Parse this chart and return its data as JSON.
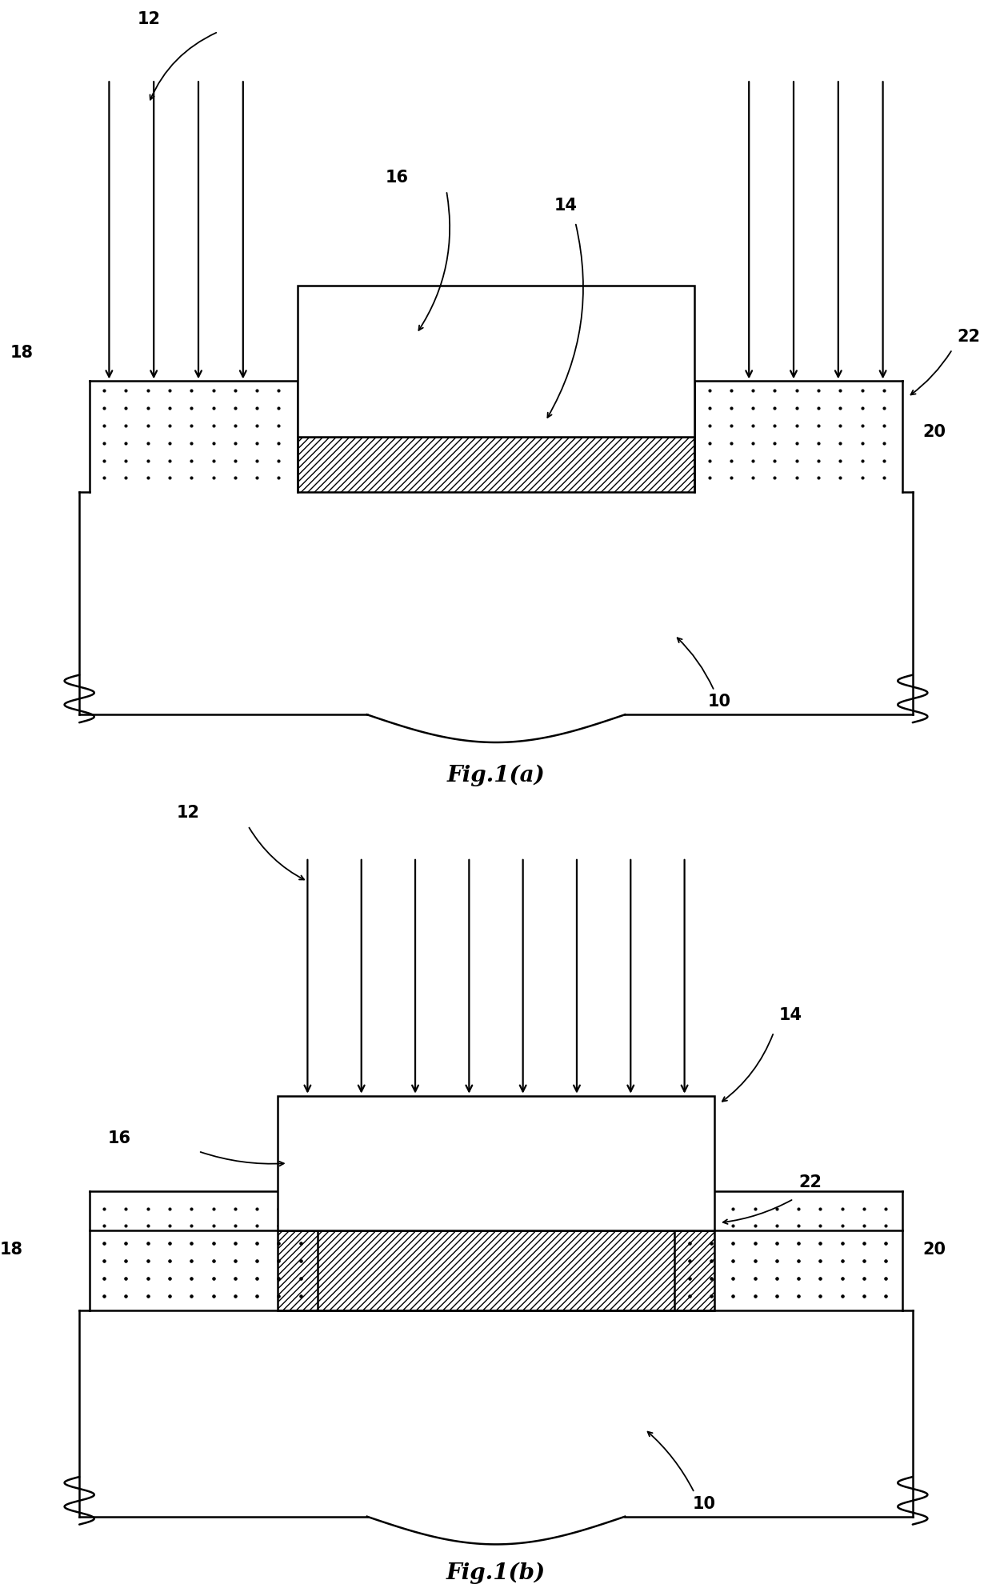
{
  "background_color": "#ffffff",
  "fig_width": 12.4,
  "fig_height": 19.85,
  "fig1a_label": "Fig.1(a)",
  "fig1b_label": "Fig.1(b)",
  "lw": 1.8,
  "arrow_lw": 1.6,
  "label_fontsize": 15,
  "fig_label_fontsize": 20
}
